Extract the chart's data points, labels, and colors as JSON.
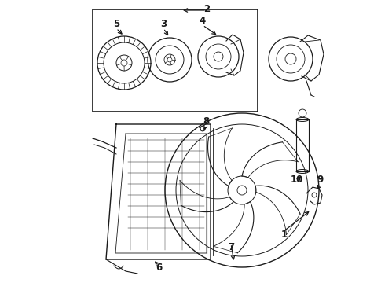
{
  "bg_color": "#ffffff",
  "line_color": "#1a1a1a",
  "fig_width": 4.9,
  "fig_height": 3.6,
  "dpi": 100,
  "label_fontsize": 8.5
}
